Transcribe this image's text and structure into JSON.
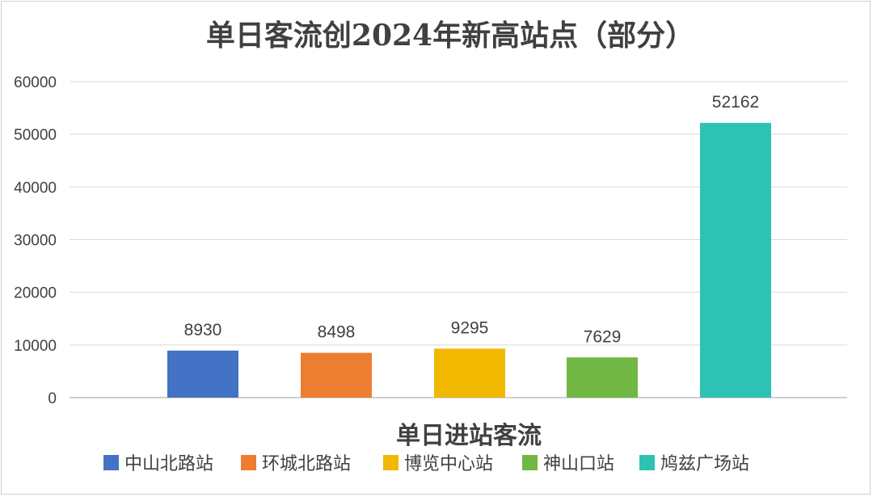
{
  "chart_data": {
    "type": "bar",
    "title": "单日客流创2024年新高站点（部分）",
    "xlabel": "单日进站客流",
    "ylabel": "",
    "ylim": [
      0,
      60000
    ],
    "yticks": [
      0,
      10000,
      20000,
      30000,
      40000,
      50000,
      60000
    ],
    "grid": true,
    "legend_position": "bottom",
    "categories": [
      "中山北路站",
      "环城北路站",
      "博览中心站",
      "神山口站",
      "鸠兹广场站"
    ],
    "values": [
      8930,
      8498,
      9295,
      7629,
      52162
    ],
    "colors": [
      "#4472C4",
      "#ED7D31",
      "#F0B800",
      "#70B843",
      "#2EC2B4"
    ]
  }
}
